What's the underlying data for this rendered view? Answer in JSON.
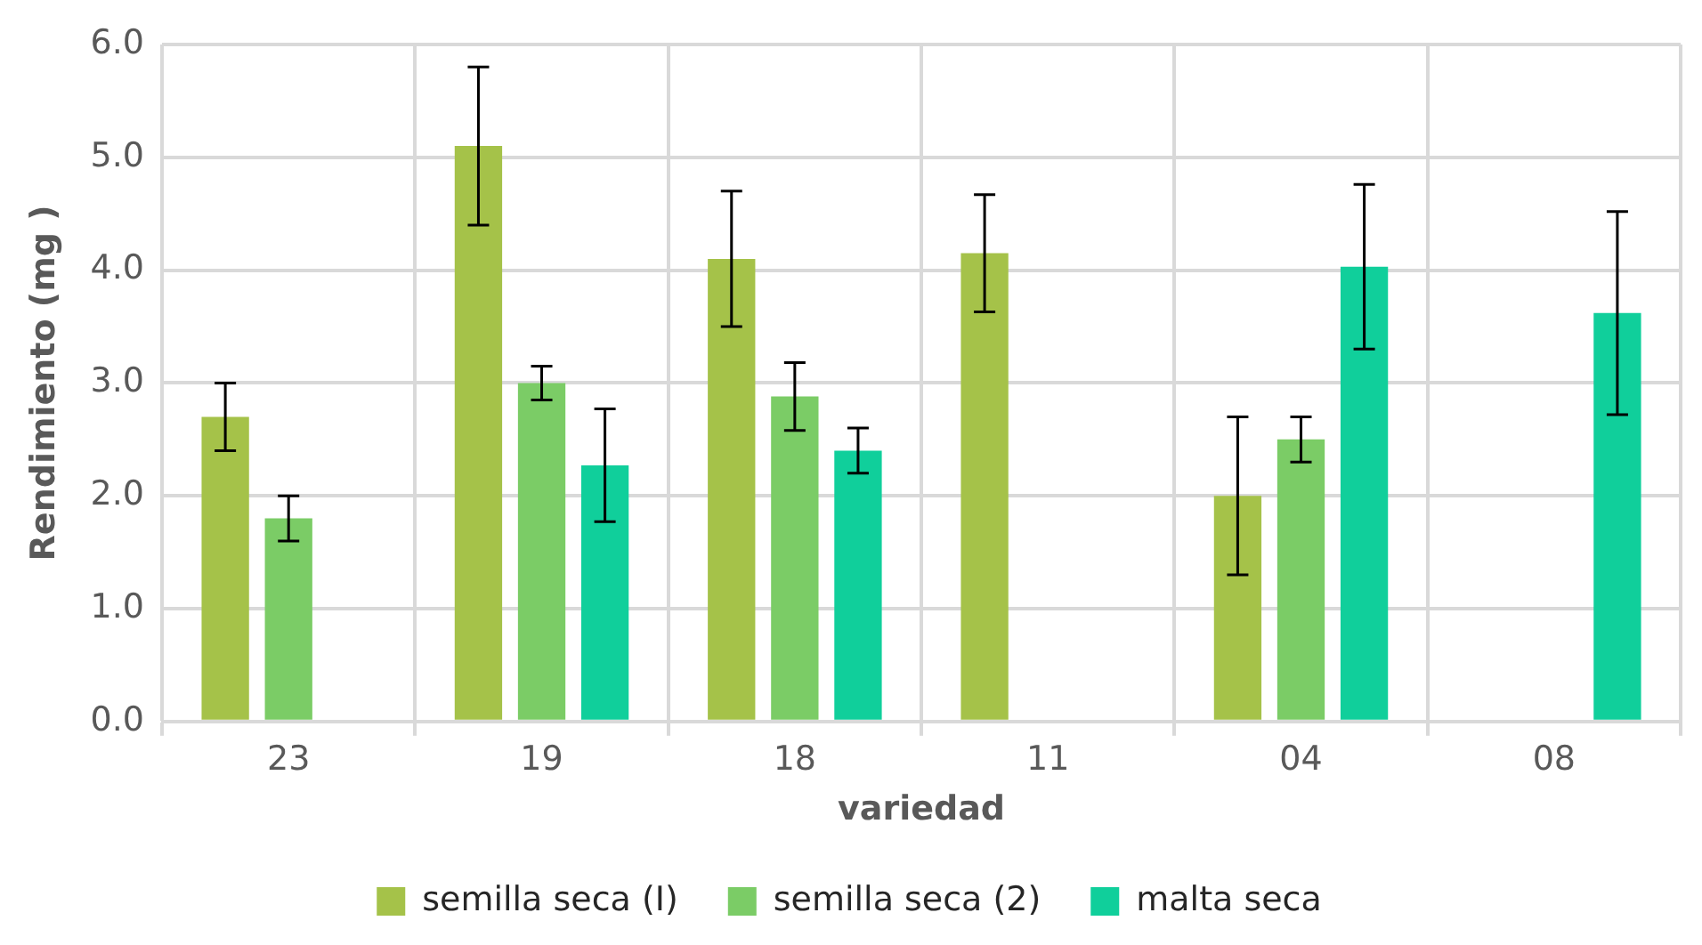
{
  "chart_data": {
    "type": "bar",
    "xlabel": "variedad",
    "ylabel": "Rendimiento (mg )",
    "categories": [
      "23",
      "19",
      "18",
      "11",
      "04",
      "08"
    ],
    "series": [
      {
        "name": "semilla seca (I)",
        "color": "#a5c249",
        "values": [
          2.7,
          5.1,
          4.1,
          4.15,
          2.0,
          null
        ],
        "errors": [
          0.3,
          0.7,
          0.6,
          0.52,
          0.7,
          null
        ]
      },
      {
        "name": "semilla seca (2)",
        "color": "#7bcc66",
        "values": [
          1.8,
          3.0,
          2.88,
          null,
          2.5,
          null
        ],
        "errors": [
          0.2,
          0.15,
          0.3,
          null,
          0.2,
          null
        ]
      },
      {
        "name": "malta seca",
        "color": "#10cf9b",
        "values": [
          null,
          2.27,
          2.4,
          null,
          4.03,
          3.62
        ],
        "errors": [
          null,
          0.5,
          0.2,
          null,
          0.73,
          0.9
        ]
      }
    ],
    "ylim": [
      0,
      6
    ],
    "yticks": [
      {
        "value": 0,
        "label": "0.0"
      },
      {
        "value": 1,
        "label": "1.0"
      },
      {
        "value": 2,
        "label": "2.0"
      },
      {
        "value": 3,
        "label": "3.0"
      },
      {
        "value": 4,
        "label": "4.0"
      },
      {
        "value": 5,
        "label": "5.0"
      },
      {
        "value": 6,
        "label": "6.0"
      }
    ],
    "grid": true,
    "legend": "bottom"
  }
}
